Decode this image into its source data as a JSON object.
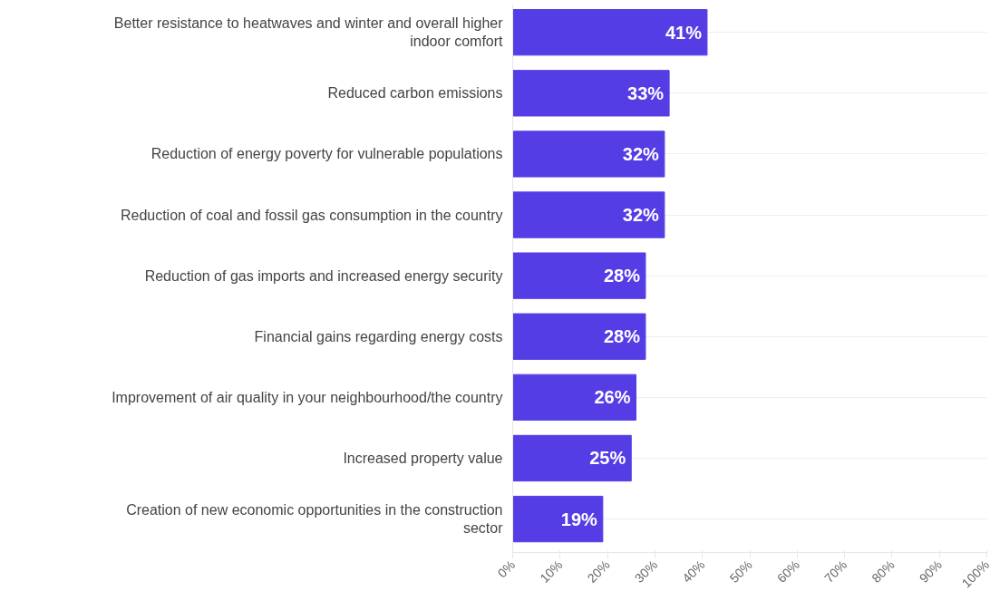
{
  "chart_data": {
    "type": "bar",
    "orientation": "horizontal",
    "categories": [
      "Better resistance to heatwaves and winter and overall higher indoor comfort",
      "Reduced carbon emissions",
      "Reduction of energy poverty for vulnerable populations",
      "Reduction of coal and fossil gas consumption in the country",
      "Reduction of gas imports and increased energy security",
      "Financial gains regarding energy costs",
      "Improvement of air quality in your neighbourhood/the country",
      "Increased property value",
      "Creation of new economic opportunities in the construction sector"
    ],
    "values": [
      41,
      33,
      32,
      32,
      28,
      28,
      26,
      25,
      19
    ],
    "value_labels": [
      "41%",
      "33%",
      "32%",
      "32%",
      "28%",
      "28%",
      "26%",
      "25%",
      "19%"
    ],
    "color": "#553de6",
    "xlim": [
      0,
      100
    ],
    "xticks": [
      {
        "value": 0,
        "label": "0%"
      },
      {
        "value": 10,
        "label": "10%"
      },
      {
        "value": 20,
        "label": "20%"
      },
      {
        "value": 30,
        "label": "30%"
      },
      {
        "value": 40,
        "label": "40%"
      },
      {
        "value": 50,
        "label": "50%"
      },
      {
        "value": 60,
        "label": "60%"
      },
      {
        "value": 70,
        "label": "70%"
      },
      {
        "value": 80,
        "label": "80%"
      },
      {
        "value": 90,
        "label": "90%"
      },
      {
        "value": 100,
        "label": "100%"
      }
    ],
    "grid": "y"
  }
}
